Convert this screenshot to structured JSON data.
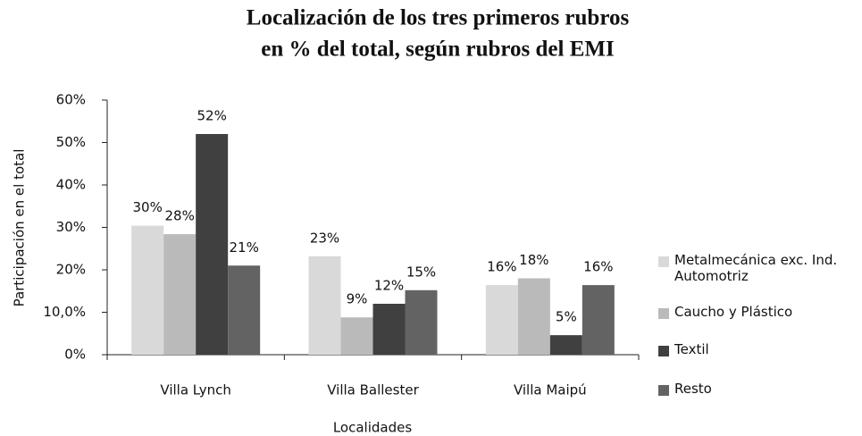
{
  "chart_data": {
    "type": "bar",
    "title": [
      "Localización de los tres primeros rubros",
      "en % del total, según rubros del EMI"
    ],
    "x_label": "Localidades",
    "y_label": "Participación en el total",
    "categories": [
      "Villa Lynch",
      "Villa Ballester",
      "Villa Maipú"
    ],
    "series": [
      {
        "name": "Metalmecánica exc. Ind. Automotriz",
        "color": "#d9d9d9",
        "values": [
          30.4,
          23.2,
          16.4
        ],
        "value_labels": [
          "30%",
          "23%",
          "16%"
        ]
      },
      {
        "name": "Caucho y Plástico",
        "color": "#bababa",
        "values": [
          28.4,
          8.8,
          18
        ],
        "value_labels": [
          "28%",
          "9%",
          "18%"
        ]
      },
      {
        "name": "Textil",
        "color": "#404040",
        "values": [
          52,
          12,
          4.6
        ],
        "value_labels": [
          "52%",
          "12%",
          "5%"
        ]
      },
      {
        "name": "Resto",
        "color": "#636363",
        "values": [
          21,
          15.2,
          16.4
        ],
        "value_labels": [
          "21%",
          "15%",
          "16%"
        ]
      }
    ],
    "ylim": [
      0,
      60
    ],
    "yticks": [
      {
        "value": 0,
        "label": "0%"
      },
      {
        "value": 10,
        "label": "10,0%"
      },
      {
        "value": 20,
        "label": "20%"
      },
      {
        "value": 30,
        "label": "30%"
      },
      {
        "value": 40,
        "label": "40%"
      },
      {
        "value": 50,
        "label": "50%"
      },
      {
        "value": 60,
        "label": "60%"
      }
    ],
    "legend": "right"
  }
}
